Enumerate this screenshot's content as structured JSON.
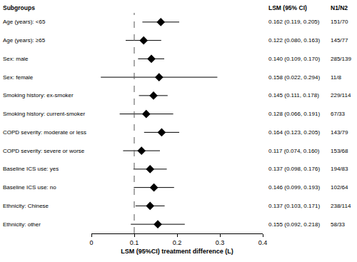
{
  "chart_data": {
    "type": "forest",
    "category_header": "Subgroups",
    "value_header": "LSM (95% CI)",
    "n_header": "N1/N2",
    "x_label": "LSM (95%CI) treatment difference (L)",
    "categories": [
      "Age (years): <65",
      "Age (years): ≥65",
      "Sex: male",
      "Sex: female",
      "Smoking history: ex-smoker",
      "Smoking history: current-smoker",
      "COPD severity: moderate or less",
      "COPD severity: severe or worse",
      "Baseline ICS use: yes",
      "Baseline ICS use: no",
      "Ethnicity: Chinese",
      "Ethnicity: other"
    ],
    "values": [
      0.162,
      0.122,
      0.14,
      0.158,
      0.145,
      0.128,
      0.164,
      0.117,
      0.137,
      0.146,
      0.137,
      0.155
    ],
    "ci_lower": [
      0.119,
      0.08,
      0.109,
      0.022,
      0.111,
      0.066,
      0.123,
      0.074,
      0.098,
      0.099,
      0.103,
      0.092
    ],
    "ci_upper": [
      0.205,
      0.163,
      0.17,
      0.294,
      0.178,
      0.191,
      0.205,
      0.16,
      0.176,
      0.193,
      0.171,
      0.218
    ],
    "value_labels": [
      "0.162 (0.119, 0.205)",
      "0.122 (0.080, 0.163)",
      "0.140 (0.109, 0.170)",
      "0.158 (0.022, 0.294)",
      "0.145 (0.111, 0.178)",
      "0.128 (0.066, 0.191)",
      "0.164 (0.123, 0.205)",
      "0.117 (0.074, 0.160)",
      "0.137 (0.098, 0.176)",
      "0.146 (0.099, 0.193)",
      "0.137 (0.103, 0.171)",
      "0.155 (0.092, 0.218)"
    ],
    "n_labels": [
      "151/70",
      "145/77",
      "285/139",
      "11/8",
      "229/114",
      "67/33",
      "143/79",
      "153/68",
      "194/83",
      "102/64",
      "238/114",
      "58/33"
    ],
    "reference_line": 0.1,
    "xlim": [
      0,
      0.4
    ],
    "xticks": [
      0,
      0.1,
      0.2,
      0.3,
      0.4
    ],
    "color": "#000000",
    "marker": "diamond",
    "grid": false
  }
}
